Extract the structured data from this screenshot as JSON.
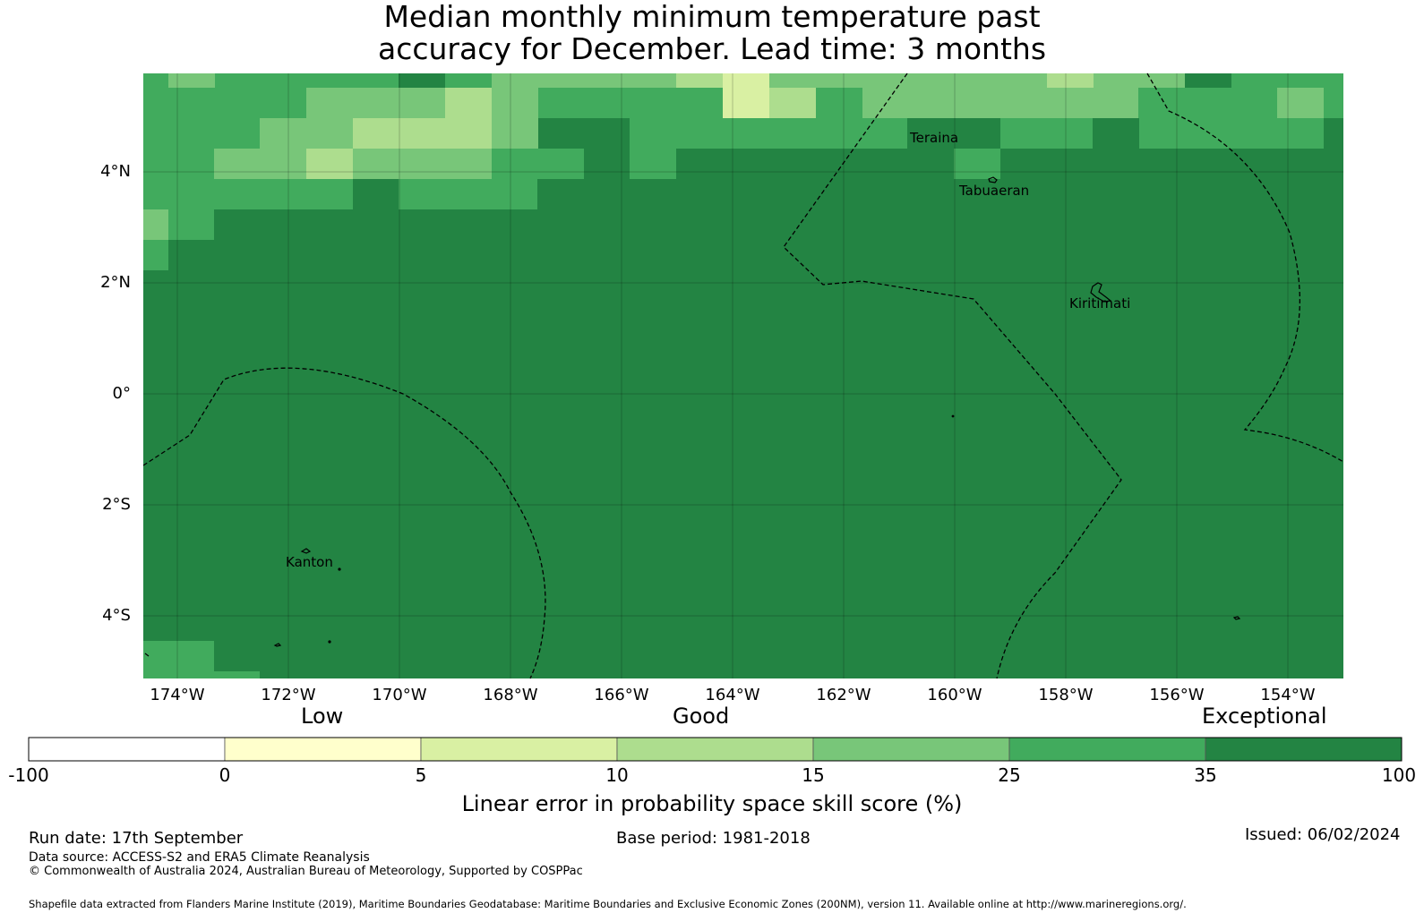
{
  "title": {
    "line1": "Median monthly minimum temperature past",
    "line2": "accuracy for December. Lead time: 3 months"
  },
  "map": {
    "lat_ticks": [
      "4°N",
      "2°N",
      "0°",
      "2°S",
      "4°S"
    ],
    "lon_ticks": [
      "174°W",
      "172°W",
      "170°W",
      "168°W",
      "166°W",
      "164°W",
      "162°W",
      "160°W",
      "158°W",
      "156°W",
      "154°W"
    ],
    "places": [
      "Teraina",
      "Tabuaeran",
      "Kiritimati",
      "Kanton"
    ],
    "boundary_style": "dashed black maritime boundary lines (200NM EEZ)",
    "gridlines": true
  },
  "colorbar": {
    "categories": [
      "Low",
      "Good",
      "Exceptional"
    ],
    "tick_labels": [
      "-100",
      "0",
      "5",
      "10",
      "15",
      "25",
      "35",
      "100"
    ],
    "colors": [
      "#ffffff",
      "#ffffcc",
      "#d9f0a3",
      "#addd8e",
      "#78c679",
      "#41ab5d",
      "#238443"
    ],
    "title": "Linear error in probability space skill score (%)"
  },
  "footer": {
    "run_date": "Run date: 17th September",
    "base_period": "Base period: 1981-2018",
    "issued": "Issued: 06/02/2024",
    "data_source": "Data source: ACCESS-S2 and ERA5 Climate Reanalysis",
    "copyright": "© Commonwealth of Australia 2024, Australian Bureau of Meteorology, Supported by COSPPac",
    "shapefile": "Shapefile data extracted from Flanders Marine Institute (2019), Maritime Boundaries Geodatabase: Maritime Boundaries and Exclusive Economic Zones (200NM), version 11. Available online at http://www.marineregions.org/."
  }
}
